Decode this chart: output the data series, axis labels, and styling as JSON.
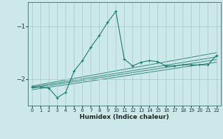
{
  "xlabel": "Humidex (Indice chaleur)",
  "ylabel": "",
  "bg_color": "#cce8e8",
  "grid_color": "#aacccc",
  "line_color": "#1a7a6e",
  "xlim": [
    -0.5,
    22.5
  ],
  "ylim": [
    -2.5,
    -0.55
  ],
  "yticks": [
    -2,
    -1
  ],
  "xticks": [
    0,
    1,
    2,
    3,
    4,
    5,
    6,
    7,
    8,
    9,
    10,
    11,
    12,
    13,
    14,
    15,
    16,
    17,
    18,
    19,
    20,
    21,
    22
  ],
  "series": [
    [
      0,
      -2.15
    ],
    [
      1,
      -2.15
    ],
    [
      2,
      -2.17
    ],
    [
      3,
      -2.35
    ],
    [
      4,
      -2.25
    ],
    [
      5,
      -1.85
    ],
    [
      6,
      -1.65
    ],
    [
      7,
      -1.4
    ],
    [
      8,
      -1.18
    ],
    [
      9,
      -0.93
    ],
    [
      10,
      -0.72
    ],
    [
      11,
      -1.62
    ],
    [
      12,
      -1.75
    ],
    [
      13,
      -1.68
    ],
    [
      14,
      -1.65
    ],
    [
      15,
      -1.67
    ],
    [
      16,
      -1.75
    ],
    [
      17,
      -1.75
    ],
    [
      18,
      -1.73
    ],
    [
      19,
      -1.73
    ],
    [
      20,
      -1.73
    ],
    [
      21,
      -1.73
    ],
    [
      22,
      -1.55
    ]
  ],
  "linear_series": [
    [
      [
        0,
        -2.13
      ],
      [
        22,
        -1.5
      ]
    ],
    [
      [
        0,
        -2.15
      ],
      [
        22,
        -1.58
      ]
    ],
    [
      [
        0,
        -2.17
      ],
      [
        22,
        -1.63
      ]
    ],
    [
      [
        0,
        -2.2
      ],
      [
        22,
        -1.68
      ]
    ]
  ]
}
